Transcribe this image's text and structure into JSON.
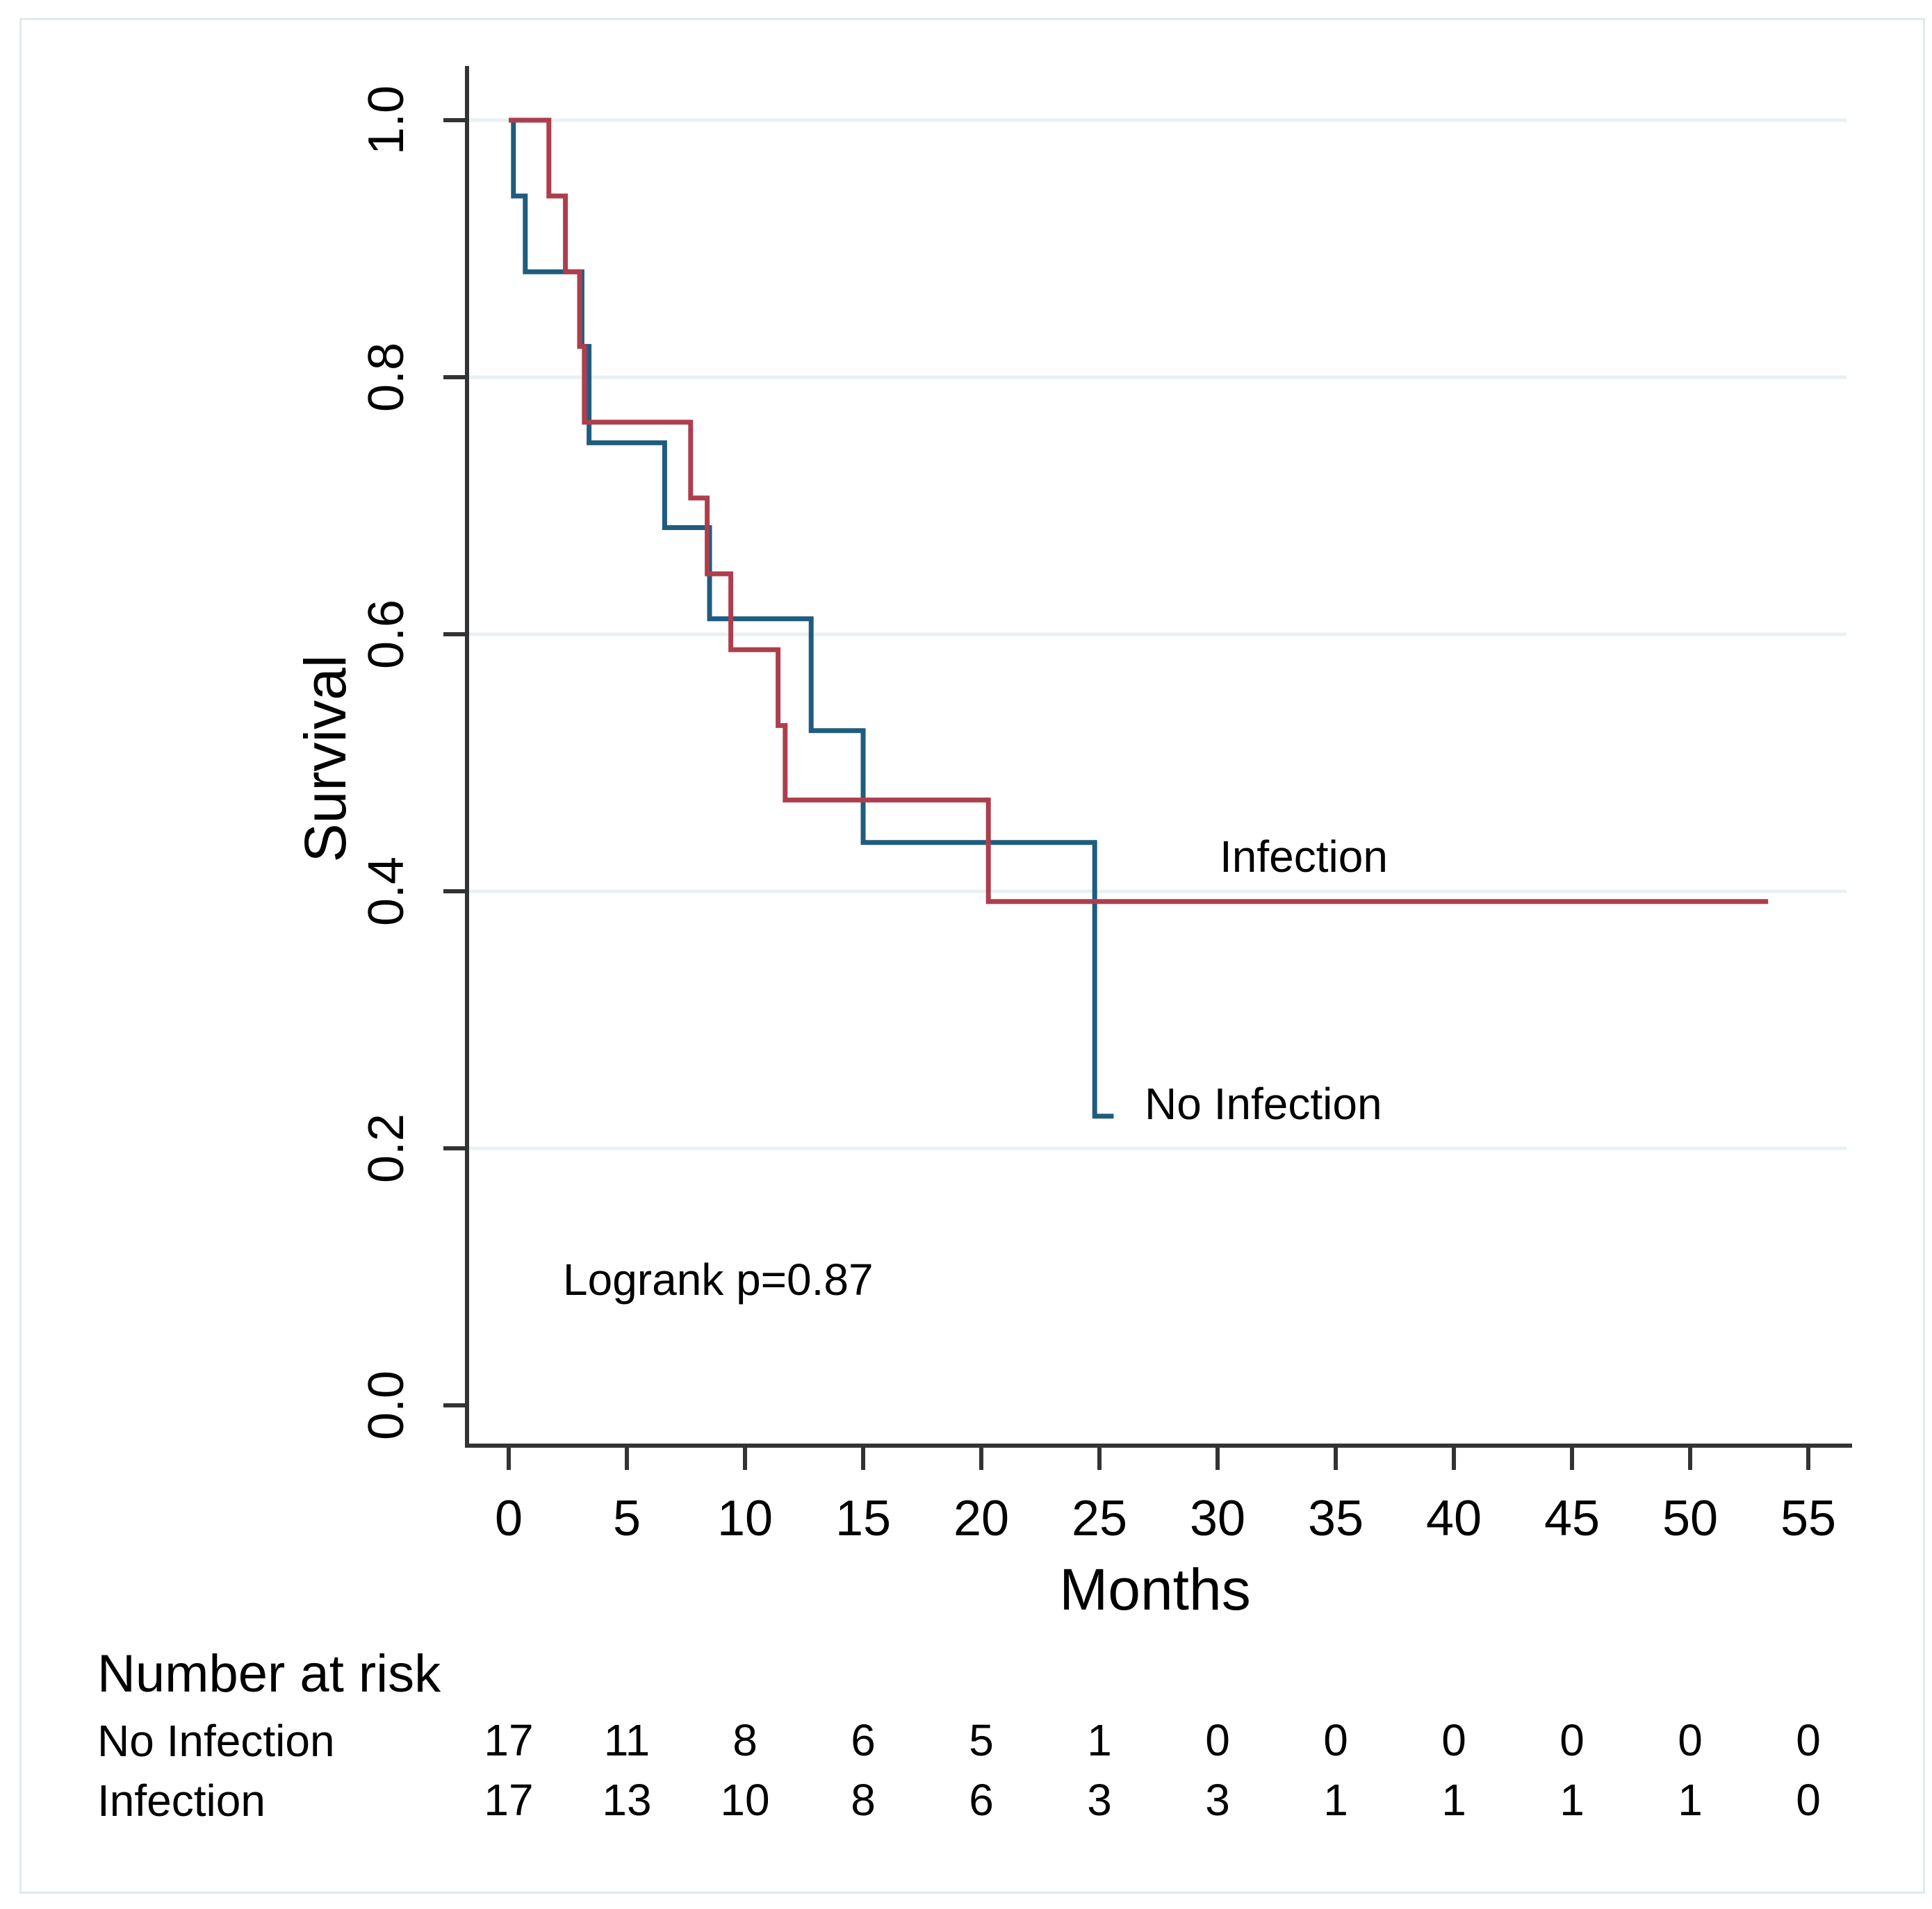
{
  "figure": {
    "background": "#ffffff",
    "frame_border_color": "#dfeaf0"
  },
  "colors": {
    "no_infection_curve": "#1f5c7e",
    "infection_curve": "#ae3e4d",
    "gridline": "#e8f1f4",
    "axis_line": "#333333",
    "text": "#000000"
  },
  "chart_data": {
    "type": "line",
    "subtype": "kaplan-meier-step",
    "title": "",
    "xlabel": "Months",
    "ylabel": "Survival",
    "xlim": [
      0,
      55
    ],
    "ylim": [
      0.0,
      1.0
    ],
    "x_ticks": [
      0,
      5,
      10,
      15,
      20,
      25,
      30,
      35,
      40,
      45,
      50,
      55
    ],
    "y_ticks": [
      {
        "value": 0.0,
        "label": "0.0"
      },
      {
        "value": 0.2,
        "label": "0.2"
      },
      {
        "value": 0.4,
        "label": "0.4"
      },
      {
        "value": 0.6,
        "label": "0.6"
      },
      {
        "value": 0.8,
        "label": "0.8"
      },
      {
        "value": 1.0,
        "label": "1.0"
      }
    ],
    "grid": "horizontal-light",
    "legend_position": "labels-on-plot",
    "annotations": {
      "logrank": "Logrank p=0.87"
    },
    "series": [
      {
        "name": "No Infection",
        "color": "#1f5c7e",
        "points": [
          [
            0,
            1.0
          ],
          [
            0.2,
            1.0
          ],
          [
            0.2,
            0.941
          ],
          [
            0.7,
            0.941
          ],
          [
            0.7,
            0.882
          ],
          [
            3.1,
            0.882
          ],
          [
            3.1,
            0.824
          ],
          [
            3.4,
            0.824
          ],
          [
            3.4,
            0.749
          ],
          [
            6.6,
            0.749
          ],
          [
            6.6,
            0.683
          ],
          [
            8.5,
            0.683
          ],
          [
            8.5,
            0.612
          ],
          [
            12.8,
            0.612
          ],
          [
            12.8,
            0.525
          ],
          [
            15.0,
            0.525
          ],
          [
            15.0,
            0.438
          ],
          [
            24.8,
            0.438
          ],
          [
            24.8,
            0.225
          ],
          [
            25.6,
            0.225
          ]
        ]
      },
      {
        "name": "Infection",
        "color": "#ae3e4d",
        "points": [
          [
            0,
            1.0
          ],
          [
            1.7,
            1.0
          ],
          [
            1.7,
            0.941
          ],
          [
            2.4,
            0.941
          ],
          [
            2.4,
            0.882
          ],
          [
            3.0,
            0.882
          ],
          [
            3.0,
            0.824
          ],
          [
            3.2,
            0.824
          ],
          [
            3.2,
            0.765
          ],
          [
            7.7,
            0.765
          ],
          [
            7.7,
            0.706
          ],
          [
            8.4,
            0.706
          ],
          [
            8.4,
            0.647
          ],
          [
            9.4,
            0.647
          ],
          [
            9.4,
            0.588
          ],
          [
            11.4,
            0.588
          ],
          [
            11.4,
            0.529
          ],
          [
            11.7,
            0.529
          ],
          [
            11.7,
            0.471
          ],
          [
            20.3,
            0.471
          ],
          [
            20.3,
            0.392
          ],
          [
            53.3,
            0.392
          ]
        ]
      }
    ],
    "curve_labels": [
      {
        "text": "No Infection",
        "series": "No Infection"
      },
      {
        "text": "Infection",
        "series": "Infection"
      }
    ],
    "risk_table": {
      "title": "Number at risk",
      "times": [
        0,
        5,
        10,
        15,
        20,
        25,
        30,
        35,
        40,
        45,
        50,
        55
      ],
      "rows": [
        {
          "label": "No Infection",
          "counts": [
            17,
            11,
            8,
            6,
            5,
            1,
            0,
            0,
            0,
            0,
            0,
            0
          ]
        },
        {
          "label": "Infection",
          "counts": [
            17,
            13,
            10,
            8,
            6,
            3,
            3,
            1,
            1,
            1,
            1,
            0
          ]
        }
      ]
    }
  }
}
